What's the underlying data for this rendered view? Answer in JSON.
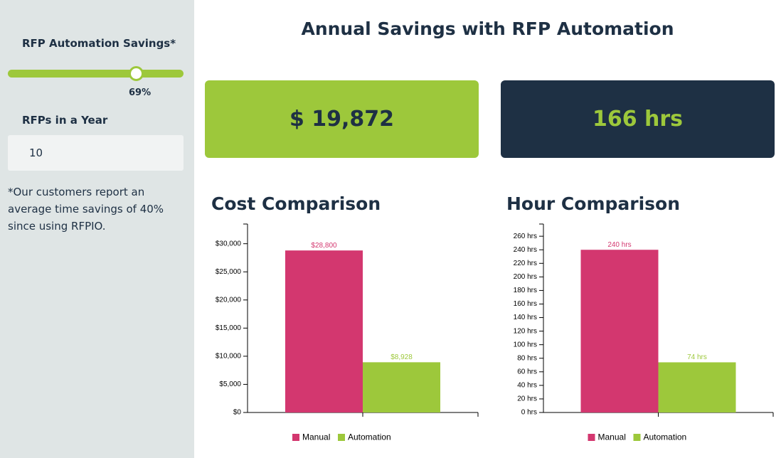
{
  "sidebar": {
    "savings_label": "RFP Automation Savings*",
    "savings_value": "69%",
    "rfps_label": "RFPs in a Year",
    "rfps_value": "10",
    "footnote": "*Our customers report an average time savings of 40% since using RFPIO."
  },
  "header": {
    "title": "Annual Savings with RFP Automation"
  },
  "cards": {
    "cost": "$ 19,872",
    "hours": "166 hrs"
  },
  "chart_data": [
    {
      "type": "bar",
      "title": "Cost Comparison",
      "categories": [
        null
      ],
      "series": [
        {
          "name": "Manual",
          "color": "#d3376f",
          "values": [
            28800
          ],
          "value_labels": [
            "$28,800"
          ]
        },
        {
          "name": "Automation",
          "color": "#9dc83b",
          "values": [
            8928
          ],
          "value_labels": [
            "$8,928"
          ]
        }
      ],
      "ylim": [
        0,
        33500
      ],
      "yticks": [
        {
          "value": 0,
          "label": "$0"
        },
        {
          "value": 5000,
          "label": "$5,000"
        },
        {
          "value": 10000,
          "label": "$10,000"
        },
        {
          "value": 15000,
          "label": "$15,000"
        },
        {
          "value": 20000,
          "label": "$20,000"
        },
        {
          "value": 25000,
          "label": "$25,000"
        },
        {
          "value": 30000,
          "label": "$30,000"
        }
      ]
    },
    {
      "type": "bar",
      "title": "Hour Comparison",
      "categories": [
        null
      ],
      "series": [
        {
          "name": "Manual",
          "color": "#d3376f",
          "values": [
            240
          ],
          "value_labels": [
            "240 hrs"
          ]
        },
        {
          "name": "Automation",
          "color": "#9dc83b",
          "values": [
            74
          ],
          "value_labels": [
            "74 hrs"
          ]
        }
      ],
      "ylim": [
        0,
        278
      ],
      "yticks": [
        {
          "value": 0,
          "label": "0 hrs"
        },
        {
          "value": 20,
          "label": "20 hrs"
        },
        {
          "value": 40,
          "label": "40 hrs"
        },
        {
          "value": 60,
          "label": "60 hrs"
        },
        {
          "value": 80,
          "label": "80 hrs"
        },
        {
          "value": 100,
          "label": "100 hrs"
        },
        {
          "value": 120,
          "label": "120 hrs"
        },
        {
          "value": 140,
          "label": "140 hrs"
        },
        {
          "value": 160,
          "label": "160 hrs"
        },
        {
          "value": 180,
          "label": "180 hrs"
        },
        {
          "value": 200,
          "label": "200 hrs"
        },
        {
          "value": 220,
          "label": "220 hrs"
        },
        {
          "value": 240,
          "label": "240 hrs"
        },
        {
          "value": 260,
          "label": "260 hrs"
        }
      ]
    }
  ]
}
